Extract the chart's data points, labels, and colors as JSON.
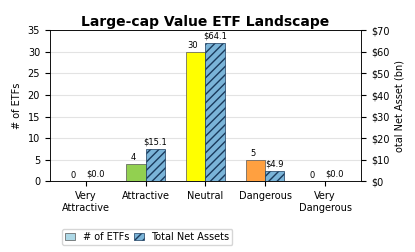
{
  "title": "Large-cap Value ETF Landscape",
  "categories": [
    "Very\nAttractive",
    "Attractive",
    "Neutral",
    "Dangerous",
    "Very\nDangerous"
  ],
  "etf_counts": [
    0,
    4,
    30,
    5,
    0
  ],
  "net_assets": [
    0.0,
    15.1,
    64.1,
    4.9,
    0.0
  ],
  "etf_colors": [
    "#c0c0c0",
    "#92d050",
    "#ffff00",
    "#ffa040",
    "#c0c0c0"
  ],
  "hatch_face_color": "#7ab4d8",
  "hatch_edge_color": "#1a3a5c",
  "bar_width": 0.32,
  "ylim_left": [
    0,
    35
  ],
  "ylim_right": [
    0,
    70
  ],
  "ylabel_left": "# of ETFs",
  "ylabel_right": "otal Net Asset (bn)",
  "legend_etf_label": "# of ETFs",
  "legend_asset_label": "Total Net Assets",
  "background_color": "#ffffff",
  "title_fontsize": 10,
  "tick_fontsize": 7,
  "label_fontsize": 7,
  "annot_fontsize": 6,
  "legend_fontsize": 7
}
